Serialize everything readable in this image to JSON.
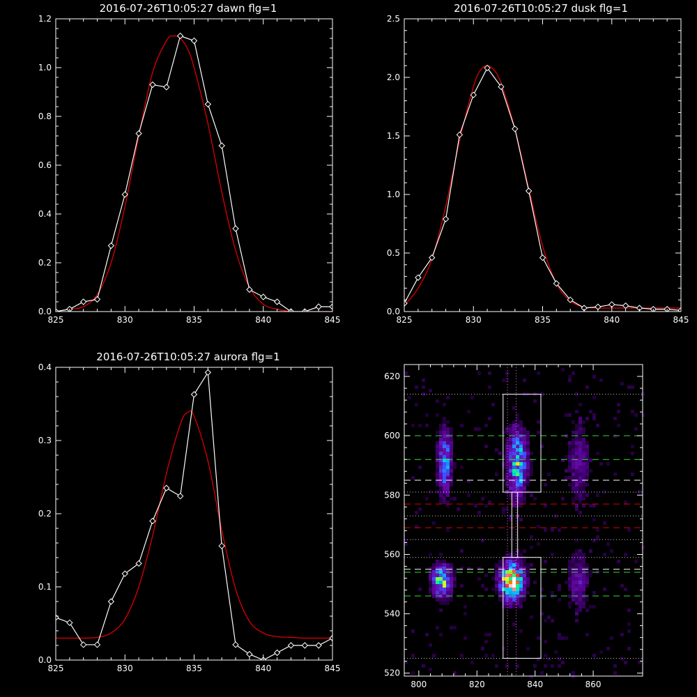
{
  "colors": {
    "background": "#000000",
    "data": "#ffffff",
    "fit": "#dd0000",
    "dash_green": "#33dd33",
    "dash_red": "#dd0000",
    "dash_white": "#ffffff"
  },
  "chart_data": [
    {
      "type": "line",
      "title": "2016-07-26T10:05:27 dawn flg=1",
      "xlim": [
        825,
        845
      ],
      "ylim": [
        0,
        1.2
      ],
      "xticks": [
        "825",
        "830",
        "835",
        "840",
        "845"
      ],
      "yticks": [
        "0.0",
        "0.2",
        "0.4",
        "0.6",
        "0.8",
        "1.0",
        "1.2"
      ],
      "series": [
        {
          "role": "data",
          "markers": "diamond",
          "x": [
            825,
            826,
            827,
            828,
            829,
            830,
            831,
            832,
            833,
            834,
            835,
            836,
            837,
            838,
            839,
            840,
            841,
            842,
            843,
            844,
            845
          ],
          "y": [
            0.0,
            0.01,
            0.04,
            0.05,
            0.27,
            0.48,
            0.73,
            0.93,
            0.92,
            1.13,
            1.11,
            0.85,
            0.68,
            0.34,
            0.09,
            0.06,
            0.04,
            0.0,
            0.0,
            0.02,
            0.02
          ]
        },
        {
          "role": "fit",
          "x": [
            825,
            826,
            827,
            828,
            829,
            830,
            831,
            832,
            833,
            833.5,
            834,
            834.5,
            835,
            836,
            837,
            838,
            839,
            840,
            841,
            842,
            843,
            844,
            845
          ],
          "y": [
            0.0,
            0.01,
            0.02,
            0.07,
            0.2,
            0.43,
            0.72,
            0.98,
            1.11,
            1.13,
            1.12,
            1.08,
            1.0,
            0.77,
            0.49,
            0.25,
            0.1,
            0.03,
            0.01,
            0.0,
            0.0,
            0.0,
            0.0
          ]
        }
      ]
    },
    {
      "type": "line",
      "title": "2016-07-26T10:05:27 dusk flg=1",
      "xlim": [
        825,
        845
      ],
      "ylim": [
        0,
        2.5
      ],
      "xticks": [
        "825",
        "830",
        "835",
        "840",
        "845"
      ],
      "yticks": [
        "0.0",
        "0.5",
        "1.0",
        "1.5",
        "2.0",
        "2.5"
      ],
      "series": [
        {
          "role": "data",
          "markers": "diamond",
          "x": [
            825,
            826,
            827,
            828,
            829,
            830,
            831,
            832,
            833,
            834,
            835,
            836,
            837,
            838,
            839,
            840,
            841,
            842,
            843,
            844,
            845
          ],
          "y": [
            0.07,
            0.29,
            0.46,
            0.79,
            1.51,
            1.85,
            2.08,
            1.92,
            1.56,
            1.03,
            0.46,
            0.24,
            0.1,
            0.03,
            0.04,
            0.06,
            0.05,
            0.03,
            0.02,
            0.02,
            0.01
          ]
        },
        {
          "role": "fit",
          "x": [
            825,
            826,
            827,
            828,
            829,
            830,
            830.5,
            831,
            831.5,
            832,
            833,
            834,
            835,
            836,
            837,
            838,
            839,
            840,
            841,
            842,
            843,
            844,
            845
          ],
          "y": [
            0.05,
            0.2,
            0.45,
            0.9,
            1.46,
            1.92,
            2.06,
            2.1,
            2.06,
            1.95,
            1.56,
            1.05,
            0.56,
            0.24,
            0.09,
            0.04,
            0.03,
            0.03,
            0.03,
            0.03,
            0.03,
            0.03,
            0.03
          ]
        }
      ]
    },
    {
      "type": "line",
      "title": "2016-07-26T10:05:27 aurora flg=1",
      "xlim": [
        825,
        845
      ],
      "ylim": [
        0,
        0.4
      ],
      "xticks": [
        "825",
        "830",
        "835",
        "840",
        "845"
      ],
      "yticks": [
        "0.0",
        "0.1",
        "0.2",
        "0.3",
        "0.4"
      ],
      "series": [
        {
          "role": "data",
          "markers": "diamond",
          "x": [
            825,
            826,
            827,
            828,
            829,
            830,
            831,
            832,
            833,
            834,
            835,
            836,
            837,
            838,
            839,
            840,
            841,
            842,
            843,
            844,
            845
          ],
          "y": [
            0.058,
            0.051,
            0.021,
            0.021,
            0.08,
            0.118,
            0.132,
            0.19,
            0.235,
            0.224,
            0.363,
            0.393,
            0.156,
            0.021,
            0.008,
            0.0,
            0.01,
            0.02,
            0.02,
            0.02,
            0.03
          ]
        },
        {
          "role": "fit",
          "x": [
            825,
            826,
            827,
            828,
            829,
            830,
            831,
            832,
            833,
            834,
            834.5,
            835,
            836,
            837,
            838,
            839,
            840,
            841,
            842,
            843,
            844,
            845
          ],
          "y": [
            0.03,
            0.03,
            0.03,
            0.031,
            0.037,
            0.056,
            0.1,
            0.17,
            0.255,
            0.322,
            0.338,
            0.333,
            0.272,
            0.177,
            0.097,
            0.053,
            0.037,
            0.032,
            0.031,
            0.03,
            0.03,
            0.03
          ]
        }
      ]
    },
    {
      "type": "heatmap",
      "title": "",
      "xlim": [
        795,
        877
      ],
      "ylim": [
        519,
        624
      ],
      "xticks": [
        "800",
        "820",
        "840",
        "860"
      ],
      "yticks": [
        "520",
        "540",
        "560",
        "580",
        "600",
        "620"
      ],
      "colormap": [
        "#000000",
        "#4b0082",
        "#6a0dad",
        "#3f51ff",
        "#00bfff",
        "#00ff80",
        "#ffff00",
        "#ff0000",
        "#ffffff"
      ],
      "sources": [
        {
          "x": 809,
          "y": 591,
          "sx": 1.6,
          "sy": 7,
          "amp": 0.45
        },
        {
          "x": 834,
          "y": 591,
          "sx": 2.2,
          "sy": 7,
          "amp": 0.55
        },
        {
          "x": 808,
          "y": 551,
          "sx": 2.2,
          "sy": 3.5,
          "amp": 0.6
        },
        {
          "x": 832,
          "y": 551,
          "sx": 2.6,
          "sy": 4,
          "amp": 0.95
        },
        {
          "x": 855,
          "y": 591,
          "sx": 2.5,
          "sy": 9,
          "amp": 0.17
        },
        {
          "x": 855,
          "y": 551,
          "sx": 2.5,
          "sy": 7,
          "amp": 0.17
        }
      ],
      "boxes": [
        {
          "x": [
            829,
            842
          ],
          "y": [
            581,
            614
          ]
        },
        {
          "x": [
            829,
            842
          ],
          "y": [
            525,
            559
          ]
        }
      ],
      "connector": {
        "x": [
          832,
          834
        ],
        "y": [
          559,
          581
        ]
      },
      "vlines_dotted": [
        830.5,
        833.5
      ],
      "hlines": [
        {
          "y": 614,
          "style": "dotted",
          "color": "white"
        },
        {
          "y": 600,
          "style": "dashed",
          "color": "green"
        },
        {
          "y": 592,
          "style": "dashed",
          "color": "green"
        },
        {
          "y": 585,
          "style": "dashed",
          "color": "white"
        },
        {
          "y": 581,
          "style": "dotted",
          "color": "white"
        },
        {
          "y": 577,
          "style": "dashed",
          "color": "red"
        },
        {
          "y": 573,
          "style": "dotted",
          "color": "white"
        },
        {
          "y": 569,
          "style": "dashed",
          "color": "red"
        },
        {
          "y": 565,
          "style": "dotted",
          "color": "white"
        },
        {
          "y": 559,
          "style": "dotted",
          "color": "white"
        },
        {
          "y": 555,
          "style": "dashed",
          "color": "white"
        },
        {
          "y": 554,
          "style": "dashed",
          "color": "green"
        },
        {
          "y": 546,
          "style": "dashed",
          "color": "green"
        },
        {
          "y": 525,
          "style": "dotted",
          "color": "white"
        }
      ]
    }
  ]
}
